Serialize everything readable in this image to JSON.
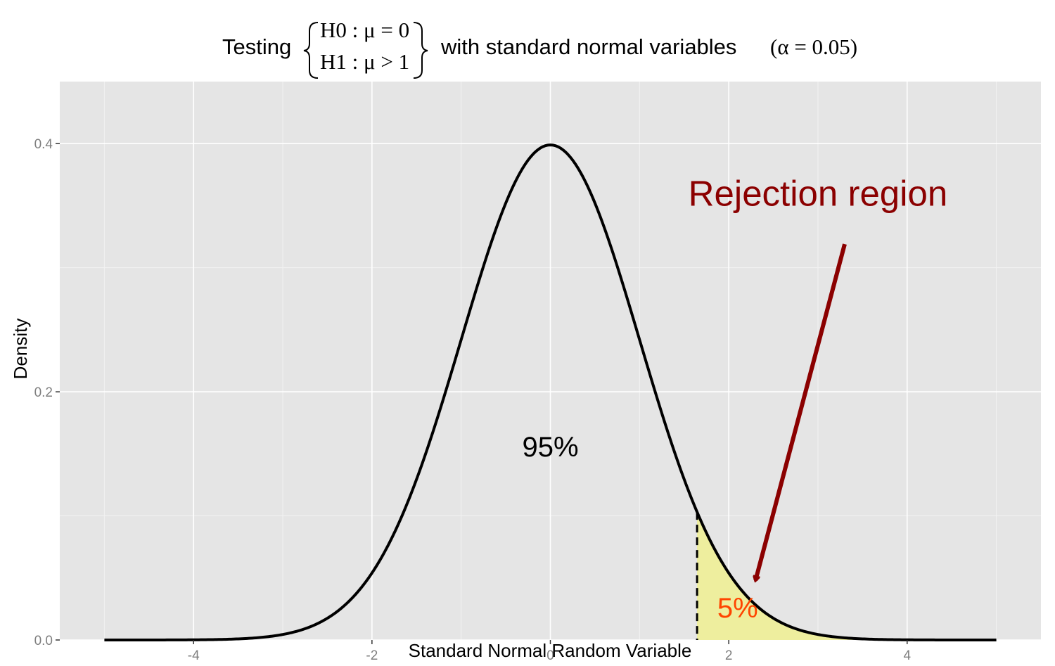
{
  "chart_data": {
    "type": "area",
    "title": {
      "prefix": "Testing",
      "h0": "H0 : μ = 0",
      "h1": "H1 : μ > 1",
      "suffix": "with standard normal variables",
      "alpha": "(α = 0.05)"
    },
    "xlabel": "Standard Normal Random Variable",
    "ylabel": "Density",
    "xlim": [
      -5.5,
      5.5
    ],
    "ylim": [
      0,
      0.45
    ],
    "x_ticks": [
      -4,
      -2,
      0,
      2,
      4
    ],
    "x_tick_labels": [
      "-4",
      "-2",
      "0",
      "2",
      "4"
    ],
    "y_ticks": [
      0.0,
      0.2,
      0.4
    ],
    "y_tick_labels": [
      "0.0",
      "0.2",
      "0.4"
    ],
    "grid": true,
    "curve": {
      "name": "standard normal density",
      "x_range": [
        -5,
        5
      ],
      "mean": 0,
      "sd": 1,
      "color": "#000000"
    },
    "critical_value": 1.645,
    "shaded_region": {
      "from": 1.645,
      "to": 5,
      "fill": "#eeee9e"
    },
    "annotations": {
      "acceptance_label": {
        "text": "95%",
        "x": 0,
        "y": 0.148,
        "color": "#000000"
      },
      "rejection_pct": {
        "text": "5%",
        "x": 2.1,
        "y": 0.018,
        "color": "#ff4500"
      },
      "rejection_title": {
        "text": "Rejection region",
        "x": 3,
        "y": 0.35,
        "color": "#8b0000"
      },
      "arrow": {
        "from": [
          3.3,
          0.319
        ],
        "to": [
          2.3,
          0.048
        ],
        "color": "#8b0000"
      }
    },
    "colors": {
      "panel": "#e5e5e5",
      "grid_major": "#ffffff",
      "grid_minor": "#f2f2f2"
    }
  }
}
